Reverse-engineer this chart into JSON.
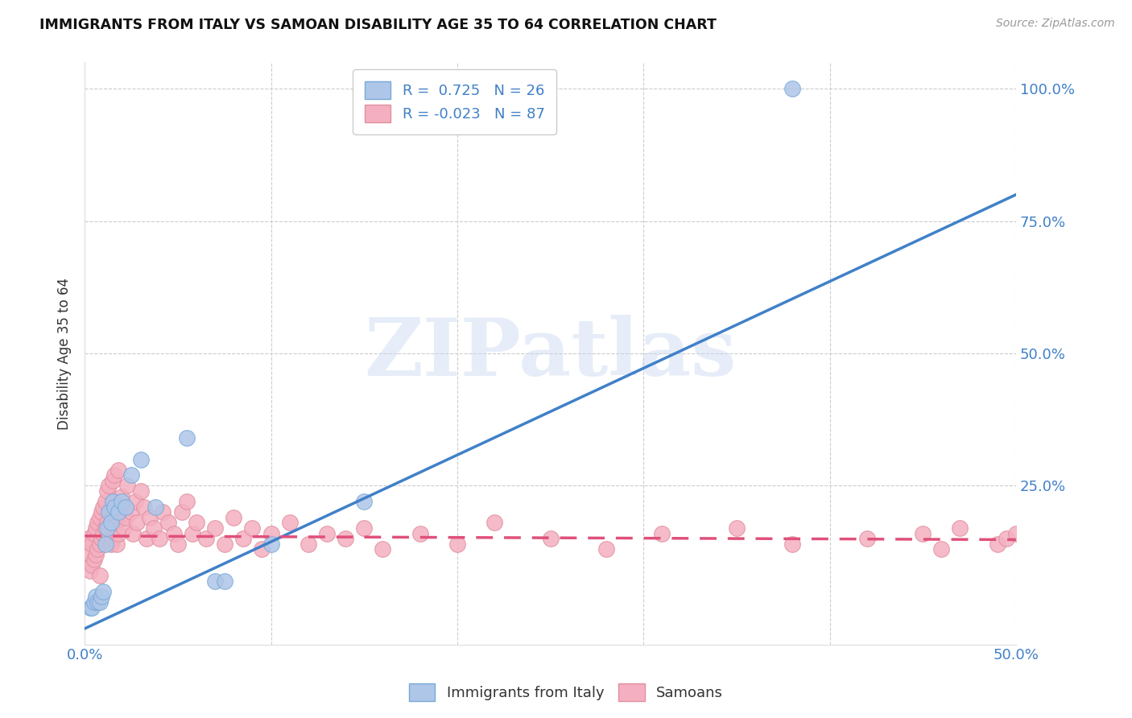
{
  "title": "IMMIGRANTS FROM ITALY VS SAMOAN DISABILITY AGE 35 TO 64 CORRELATION CHART",
  "source": "Source: ZipAtlas.com",
  "ylabel": "Disability Age 35 to 64",
  "xlim": [
    0.0,
    0.5
  ],
  "ylim": [
    -0.05,
    1.05
  ],
  "background_color": "#ffffff",
  "grid_color": "#cccccc",
  "blue_line_color": "#4080c8",
  "pink_line_color": "#e0507a",
  "blue_dot_color": "#aec6e8",
  "pink_dot_color": "#f4b0c0",
  "blue_dot_edge": "#7aaad8",
  "pink_dot_edge": "#e090a0",
  "watermark_text": "ZIPatlas",
  "legend_italy_label": "R =  0.725   N = 26",
  "legend_samoa_label": "R = -0.023   N = 87",
  "legend_italy_color": "#aec6e8",
  "legend_samoa_color": "#f4b0c0",
  "legend_italy_edge": "#7aaad8",
  "legend_samoa_edge": "#e090a0",
  "blue_line_x0": 0.0,
  "blue_line_y0": -0.02,
  "blue_line_x1": 0.5,
  "blue_line_y1": 0.8,
  "pink_line_x0": 0.0,
  "pink_line_y0": 0.155,
  "pink_line_x1": 0.5,
  "pink_line_y1": 0.148,
  "italy_x": [
    0.003,
    0.004,
    0.005,
    0.006,
    0.007,
    0.008,
    0.009,
    0.01,
    0.011,
    0.012,
    0.013,
    0.014,
    0.015,
    0.016,
    0.018,
    0.02,
    0.022,
    0.025,
    0.03,
    0.038,
    0.055,
    0.07,
    0.075,
    0.1,
    0.15,
    0.38
  ],
  "italy_y": [
    0.02,
    0.02,
    0.03,
    0.04,
    0.03,
    0.03,
    0.04,
    0.05,
    0.14,
    0.17,
    0.2,
    0.18,
    0.22,
    0.21,
    0.2,
    0.22,
    0.21,
    0.27,
    0.3,
    0.21,
    0.34,
    0.07,
    0.07,
    0.14,
    0.22,
    1.0
  ],
  "samoa_x": [
    0.002,
    0.003,
    0.003,
    0.004,
    0.004,
    0.005,
    0.005,
    0.006,
    0.006,
    0.007,
    0.007,
    0.008,
    0.008,
    0.008,
    0.009,
    0.009,
    0.01,
    0.01,
    0.011,
    0.011,
    0.012,
    0.012,
    0.013,
    0.013,
    0.014,
    0.014,
    0.015,
    0.015,
    0.015,
    0.016,
    0.016,
    0.017,
    0.017,
    0.018,
    0.018,
    0.019,
    0.02,
    0.021,
    0.022,
    0.023,
    0.025,
    0.026,
    0.027,
    0.028,
    0.03,
    0.032,
    0.033,
    0.035,
    0.037,
    0.04,
    0.042,
    0.045,
    0.048,
    0.05,
    0.052,
    0.055,
    0.058,
    0.06,
    0.065,
    0.07,
    0.075,
    0.08,
    0.085,
    0.09,
    0.095,
    0.1,
    0.11,
    0.12,
    0.13,
    0.14,
    0.15,
    0.16,
    0.18,
    0.2,
    0.22,
    0.25,
    0.28,
    0.31,
    0.35,
    0.38,
    0.42,
    0.45,
    0.46,
    0.47,
    0.49,
    0.495,
    0.5
  ],
  "samoa_y": [
    0.15,
    0.12,
    0.09,
    0.14,
    0.1,
    0.16,
    0.11,
    0.17,
    0.12,
    0.18,
    0.13,
    0.19,
    0.08,
    0.14,
    0.2,
    0.15,
    0.21,
    0.16,
    0.22,
    0.17,
    0.24,
    0.18,
    0.25,
    0.16,
    0.2,
    0.14,
    0.26,
    0.19,
    0.15,
    0.27,
    0.22,
    0.18,
    0.14,
    0.28,
    0.16,
    0.2,
    0.23,
    0.17,
    0.19,
    0.25,
    0.2,
    0.16,
    0.22,
    0.18,
    0.24,
    0.21,
    0.15,
    0.19,
    0.17,
    0.15,
    0.2,
    0.18,
    0.16,
    0.14,
    0.2,
    0.22,
    0.16,
    0.18,
    0.15,
    0.17,
    0.14,
    0.19,
    0.15,
    0.17,
    0.13,
    0.16,
    0.18,
    0.14,
    0.16,
    0.15,
    0.17,
    0.13,
    0.16,
    0.14,
    0.18,
    0.15,
    0.13,
    0.16,
    0.17,
    0.14,
    0.15,
    0.16,
    0.13,
    0.17,
    0.14,
    0.15,
    0.16
  ]
}
